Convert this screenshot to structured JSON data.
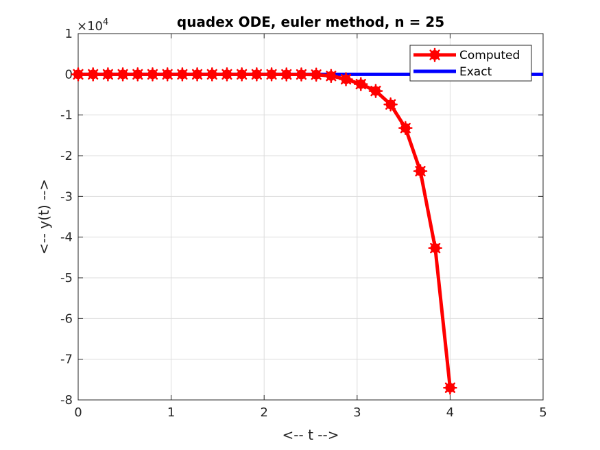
{
  "chart_data": {
    "type": "line",
    "title": "quadex ODE, euler method, n = 25",
    "xlabel": "<-- t -->",
    "ylabel": "<-- y(t) -->",
    "xlim": [
      0,
      5
    ],
    "ylim": [
      -8,
      1
    ],
    "y_scale_factor": "×10",
    "y_scale_exponent": "4",
    "xticks": [
      "0",
      "1",
      "2",
      "3",
      "4",
      "5"
    ],
    "yticks": [
      "1",
      "0",
      "-1",
      "-2",
      "-3",
      "-4",
      "-5",
      "-6",
      "-7",
      "-8"
    ],
    "grid": true,
    "legend_position": "top-right",
    "series": [
      {
        "name": "Computed",
        "color": "#ff0000",
        "marker": "asterisk",
        "x": [
          0,
          0.16,
          0.32,
          0.48,
          0.64,
          0.8,
          0.96,
          1.12,
          1.28,
          1.44,
          1.6,
          1.76,
          1.92,
          2.08,
          2.24,
          2.4,
          2.56,
          2.72,
          2.88,
          3.04,
          3.2,
          3.36,
          3.52,
          3.68,
          3.84,
          4.0
        ],
        "y": [
          0,
          0,
          0,
          0,
          0,
          0,
          0,
          0,
          0,
          0,
          -0.0001,
          -0.0002,
          -0.0004,
          -0.0009,
          -0.0018,
          -0.0038,
          -0.008,
          -0.04,
          -0.12,
          -0.24,
          -0.41,
          -0.74,
          -1.32,
          -2.38,
          -4.27,
          -7.7
        ]
      },
      {
        "name": "Exact",
        "color": "#0000ff",
        "x": [
          0,
          0.5,
          1,
          1.5,
          2,
          2.5,
          3,
          3.5,
          4,
          4.5,
          5
        ],
        "y": [
          0,
          0,
          0,
          0,
          0,
          0,
          0,
          0,
          0,
          0,
          0
        ]
      }
    ]
  }
}
